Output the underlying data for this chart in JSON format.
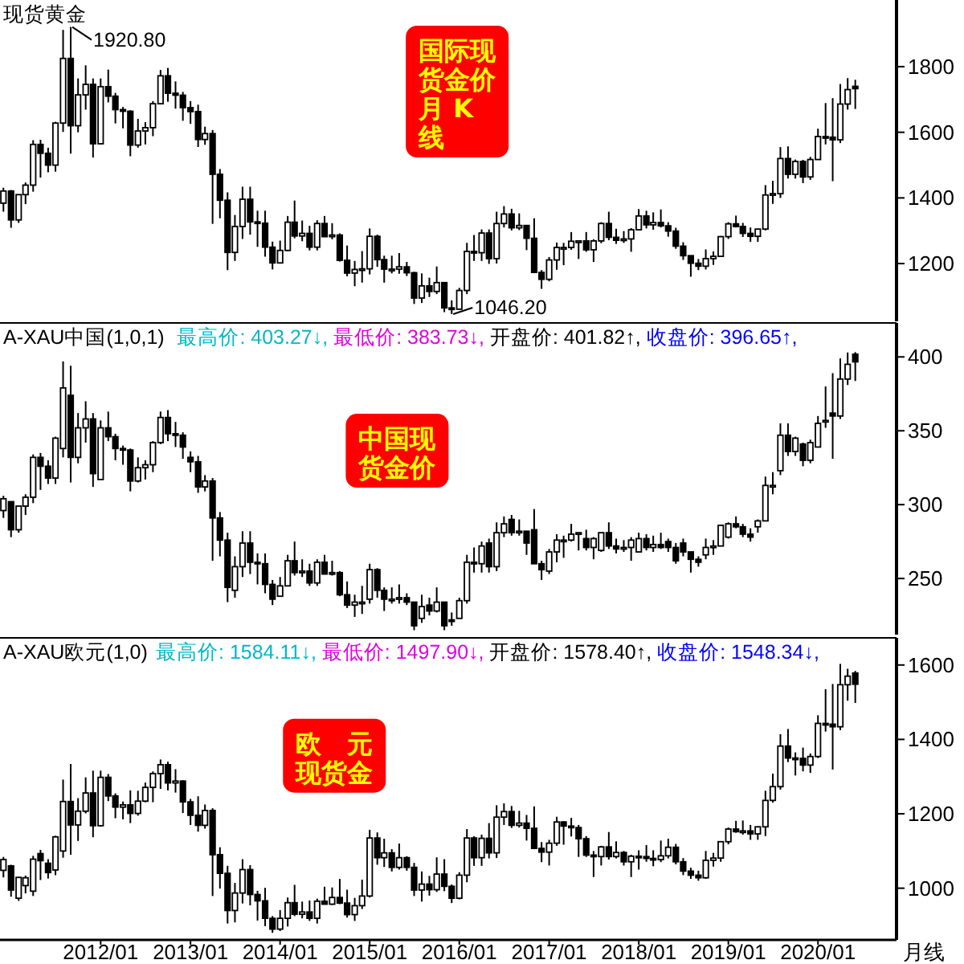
{
  "chart_data": [
    {
      "type": "candlestick",
      "title": "现货黄金",
      "annotations": [
        "国际现货金价月 K线",
        {
          "text": "1920.80",
          "x": "2011-09",
          "y": 1920.8
        },
        {
          "text": "1046.20",
          "x": "2015-12",
          "y": 1046.2
        }
      ],
      "x": [
        "2010-12",
        "2011-01",
        "2011-02",
        "2011-03",
        "2011-04",
        "2011-05",
        "2011-06",
        "2011-07",
        "2011-08",
        "2011-09",
        "2011-10",
        "2011-11",
        "2011-12",
        "2012-01",
        "2012-02",
        "2012-03",
        "2012-04",
        "2012-05",
        "2012-06",
        "2012-07",
        "2012-08",
        "2012-09",
        "2012-10",
        "2012-11",
        "2012-12",
        "2013-01",
        "2013-02",
        "2013-03",
        "2013-04",
        "2013-05",
        "2013-06",
        "2013-07",
        "2013-08",
        "2013-09",
        "2013-10",
        "2013-11",
        "2013-12",
        "2014-01",
        "2014-02",
        "2014-03",
        "2014-04",
        "2014-05",
        "2014-06",
        "2014-07",
        "2014-08",
        "2014-09",
        "2014-10",
        "2014-11",
        "2014-12",
        "2015-01",
        "2015-02",
        "2015-03",
        "2015-04",
        "2015-05",
        "2015-06",
        "2015-07",
        "2015-08",
        "2015-09",
        "2015-10",
        "2015-11",
        "2015-12",
        "2016-01",
        "2016-02",
        "2016-03",
        "2016-04",
        "2016-05",
        "2016-06",
        "2016-07",
        "2016-08",
        "2016-09",
        "2016-10",
        "2016-11",
        "2016-12",
        "2017-01",
        "2017-02",
        "2017-03",
        "2017-04",
        "2017-05",
        "2017-06",
        "2017-07",
        "2017-08",
        "2017-09",
        "2017-10",
        "2017-11",
        "2017-12",
        "2018-01",
        "2018-02",
        "2018-03",
        "2018-04",
        "2018-05",
        "2018-06",
        "2018-07",
        "2018-08",
        "2018-09",
        "2018-10",
        "2018-11",
        "2018-12",
        "2019-01",
        "2019-02",
        "2019-03",
        "2019-04",
        "2019-05",
        "2019-06",
        "2019-07",
        "2019-08",
        "2019-09",
        "2019-10",
        "2019-11",
        "2019-12",
        "2020-01",
        "2020-02",
        "2020-03",
        "2020-04",
        "2020-05",
        "2020-06"
      ],
      "ohlc": [
        [
          1384,
          1431,
          1358,
          1421
        ],
        [
          1421,
          1424,
          1309,
          1333
        ],
        [
          1333,
          1411,
          1324,
          1410
        ],
        [
          1410,
          1447,
          1381,
          1439
        ],
        [
          1439,
          1576,
          1419,
          1563
        ],
        [
          1563,
          1577,
          1462,
          1536
        ],
        [
          1536,
          1553,
          1478,
          1500
        ],
        [
          1500,
          1632,
          1480,
          1628
        ],
        [
          1628,
          1912,
          1601,
          1825
        ],
        [
          1825,
          1920.8,
          1535,
          1620
        ],
        [
          1620,
          1764,
          1600,
          1714
        ],
        [
          1714,
          1804,
          1669,
          1746
        ],
        [
          1746,
          1764,
          1523,
          1565
        ],
        [
          1565,
          1764,
          1563,
          1739
        ],
        [
          1739,
          1791,
          1691,
          1710
        ],
        [
          1710,
          1720,
          1627,
          1669
        ],
        [
          1669,
          1677,
          1612,
          1664
        ],
        [
          1664,
          1667,
          1527,
          1561
        ],
        [
          1561,
          1641,
          1553,
          1604
        ],
        [
          1604,
          1631,
          1563,
          1614
        ],
        [
          1614,
          1695,
          1588,
          1687
        ],
        [
          1687,
          1790,
          1685,
          1772
        ],
        [
          1772,
          1796,
          1693,
          1719
        ],
        [
          1719,
          1755,
          1672,
          1713
        ],
        [
          1713,
          1723,
          1635,
          1675
        ],
        [
          1675,
          1695,
          1626,
          1663
        ],
        [
          1663,
          1684,
          1555,
          1578
        ],
        [
          1578,
          1617,
          1562,
          1596
        ],
        [
          1596,
          1607,
          1321,
          1472
        ],
        [
          1472,
          1488,
          1338,
          1393
        ],
        [
          1393,
          1417,
          1180,
          1234
        ],
        [
          1234,
          1348,
          1208,
          1313
        ],
        [
          1313,
          1434,
          1275,
          1396
        ],
        [
          1396,
          1434,
          1288,
          1327
        ],
        [
          1327,
          1361,
          1251,
          1323
        ],
        [
          1323,
          1361,
          1221,
          1250
        ],
        [
          1250,
          1267,
          1182,
          1202
        ],
        [
          1202,
          1270,
          1200,
          1240
        ],
        [
          1240,
          1345,
          1238,
          1326
        ],
        [
          1326,
          1392,
          1277,
          1284
        ],
        [
          1284,
          1331,
          1268,
          1292
        ],
        [
          1292,
          1315,
          1240,
          1250
        ],
        [
          1250,
          1332,
          1240,
          1322
        ],
        [
          1322,
          1345,
          1281,
          1282
        ],
        [
          1282,
          1323,
          1274,
          1287
        ],
        [
          1287,
          1292,
          1206,
          1210
        ],
        [
          1210,
          1255,
          1161,
          1171
        ],
        [
          1171,
          1208,
          1131,
          1182
        ],
        [
          1182,
          1238,
          1142,
          1184
        ],
        [
          1184,
          1307,
          1167,
          1283
        ],
        [
          1283,
          1288,
          1190,
          1212
        ],
        [
          1212,
          1224,
          1142,
          1183
        ],
        [
          1183,
          1224,
          1170,
          1183
        ],
        [
          1183,
          1232,
          1169,
          1190
        ],
        [
          1190,
          1205,
          1162,
          1172
        ],
        [
          1172,
          1175,
          1077,
          1095
        ],
        [
          1095,
          1170,
          1080,
          1132
        ],
        [
          1132,
          1157,
          1098,
          1115
        ],
        [
          1115,
          1191,
          1107,
          1142
        ],
        [
          1142,
          1143,
          1052,
          1065
        ],
        [
          1065,
          1088,
          1046.2,
          1061
        ],
        [
          1061,
          1126,
          1061,
          1118
        ],
        [
          1118,
          1263,
          1107,
          1237
        ],
        [
          1237,
          1287,
          1208,
          1233
        ],
        [
          1233,
          1304,
          1208,
          1293
        ],
        [
          1293,
          1304,
          1199,
          1215
        ],
        [
          1215,
          1358,
          1200,
          1322
        ],
        [
          1322,
          1375,
          1310,
          1351
        ],
        [
          1351,
          1367,
          1301,
          1309
        ],
        [
          1309,
          1353,
          1302,
          1316
        ],
        [
          1316,
          1317,
          1241,
          1277
        ],
        [
          1277,
          1338,
          1171,
          1173
        ],
        [
          1173,
          1180,
          1123,
          1152
        ],
        [
          1152,
          1220,
          1146,
          1211
        ],
        [
          1211,
          1264,
          1181,
          1249
        ],
        [
          1249,
          1263,
          1195,
          1249
        ],
        [
          1249,
          1296,
          1242,
          1268
        ],
        [
          1268,
          1270,
          1214,
          1269
        ],
        [
          1269,
          1296,
          1236,
          1242
        ],
        [
          1242,
          1274,
          1205,
          1269
        ],
        [
          1269,
          1326,
          1262,
          1322
        ],
        [
          1322,
          1358,
          1271,
          1280
        ],
        [
          1280,
          1306,
          1260,
          1271
        ],
        [
          1271,
          1299,
          1263,
          1275
        ],
        [
          1275,
          1308,
          1236,
          1303
        ],
        [
          1303,
          1366,
          1302,
          1345
        ],
        [
          1345,
          1361,
          1307,
          1318
        ],
        [
          1318,
          1356,
          1303,
          1325
        ],
        [
          1325,
          1365,
          1310,
          1315
        ],
        [
          1315,
          1326,
          1282,
          1299
        ],
        [
          1299,
          1309,
          1245,
          1253
        ],
        [
          1253,
          1265,
          1211,
          1224
        ],
        [
          1224,
          1224,
          1160,
          1201
        ],
        [
          1201,
          1214,
          1180,
          1192
        ],
        [
          1192,
          1243,
          1182,
          1215
        ],
        [
          1215,
          1237,
          1196,
          1222
        ],
        [
          1222,
          1284,
          1221,
          1282
        ],
        [
          1282,
          1326,
          1275,
          1321
        ],
        [
          1321,
          1346,
          1310,
          1313
        ],
        [
          1313,
          1324,
          1281,
          1292
        ],
        [
          1292,
          1310,
          1266,
          1283
        ],
        [
          1283,
          1306,
          1266,
          1305
        ],
        [
          1305,
          1439,
          1301,
          1409
        ],
        [
          1409,
          1452,
          1382,
          1413
        ],
        [
          1413,
          1555,
          1400,
          1520
        ],
        [
          1520,
          1557,
          1459,
          1472
        ],
        [
          1472,
          1517,
          1459,
          1511
        ],
        [
          1511,
          1516,
          1445,
          1464
        ],
        [
          1464,
          1525,
          1455,
          1517
        ],
        [
          1517,
          1611,
          1517,
          1587
        ],
        [
          1587,
          1689,
          1563,
          1585
        ],
        [
          1585,
          1704,
          1451,
          1577
        ],
        [
          1577,
          1747,
          1567,
          1686
        ],
        [
          1686,
          1765,
          1669,
          1730
        ],
        [
          1740,
          1760,
          1671,
          1733
        ]
      ],
      "xlim": [
        "2010-11-17",
        "2020-11-16"
      ],
      "ylim": [
        1024,
        2003
      ],
      "yticks": [
        1200,
        1400,
        1600,
        1800
      ],
      "tick_labels": "y"
    },
    {
      "type": "candlestick",
      "title": "A-XAU中国(1,0,1)",
      "subtitle": "最高价: 403.27↓, 最低价: 383.73↓, 开盘价: 401.82↑, 收盘价: 396.65↑,",
      "annotations": [
        "中国现货金价"
      ],
      "x": [
        "2010-12",
        "2011-01",
        "2011-02",
        "2011-03",
        "2011-04",
        "2011-05",
        "2011-06",
        "2011-07",
        "2011-08",
        "2011-09",
        "2011-10",
        "2011-11",
        "2011-12",
        "2012-01",
        "2012-02",
        "2012-03",
        "2012-04",
        "2012-05",
        "2012-06",
        "2012-07",
        "2012-08",
        "2012-09",
        "2012-10",
        "2012-11",
        "2012-12",
        "2013-01",
        "2013-02",
        "2013-03",
        "2013-04",
        "2013-05",
        "2013-06",
        "2013-07",
        "2013-08",
        "2013-09",
        "2013-10",
        "2013-11",
        "2013-12",
        "2014-01",
        "2014-02",
        "2014-03",
        "2014-04",
        "2014-05",
        "2014-06",
        "2014-07",
        "2014-08",
        "2014-09",
        "2014-10",
        "2014-11",
        "2014-12",
        "2015-01",
        "2015-02",
        "2015-03",
        "2015-04",
        "2015-05",
        "2015-06",
        "2015-07",
        "2015-08",
        "2015-09",
        "2015-10",
        "2015-11",
        "2015-12",
        "2016-01",
        "2016-02",
        "2016-03",
        "2016-04",
        "2016-05",
        "2016-06",
        "2016-07",
        "2016-08",
        "2016-09",
        "2016-10",
        "2016-11",
        "2016-12",
        "2017-01",
        "2017-02",
        "2017-03",
        "2017-04",
        "2017-05",
        "2017-06",
        "2017-07",
        "2017-08",
        "2017-09",
        "2017-10",
        "2017-11",
        "2017-12",
        "2018-01",
        "2018-02",
        "2018-03",
        "2018-04",
        "2018-05",
        "2018-06",
        "2018-07",
        "2018-08",
        "2018-09",
        "2018-10",
        "2018-11",
        "2018-12",
        "2019-01",
        "2019-02",
        "2019-03",
        "2019-04",
        "2019-05",
        "2019-06",
        "2019-07",
        "2019-08",
        "2019-09",
        "2019-10",
        "2019-11",
        "2019-12",
        "2020-01",
        "2020-02",
        "2020-03",
        "2020-04",
        "2020-05",
        "2020-06"
      ],
      "ohlc": [
        [
          296,
          306,
          291,
          304
        ],
        [
          302,
          302,
          278,
          283
        ],
        [
          283,
          299,
          281,
          299
        ],
        [
          299,
          307,
          293,
          305
        ],
        [
          305,
          334,
          301,
          332
        ],
        [
          332,
          335,
          310,
          326
        ],
        [
          326,
          330,
          314,
          318
        ],
        [
          318,
          346,
          314,
          345
        ],
        [
          338,
          397,
          332,
          379
        ],
        [
          374,
          394,
          315,
          332
        ],
        [
          332,
          362,
          328,
          352
        ],
        [
          352,
          370,
          342,
          358
        ],
        [
          358,
          362,
          312,
          321
        ],
        [
          317,
          357,
          317,
          352
        ],
        [
          352,
          363,
          343,
          346
        ],
        [
          346,
          348,
          330,
          338
        ],
        [
          338,
          340,
          327,
          337
        ],
        [
          337,
          338,
          309,
          316
        ],
        [
          316,
          332,
          315,
          325
        ],
        [
          325,
          330,
          317,
          327
        ],
        [
          327,
          343,
          322,
          342
        ],
        [
          342,
          363,
          341,
          359
        ],
        [
          359,
          364,
          343,
          348
        ],
        [
          348,
          356,
          339,
          347
        ],
        [
          347,
          349,
          331,
          339
        ],
        [
          332,
          336,
          322,
          329
        ],
        [
          329,
          333,
          308,
          312
        ],
        [
          312,
          320,
          309,
          316
        ],
        [
          316,
          318,
          262,
          291
        ],
        [
          291,
          295,
          265,
          276
        ],
        [
          276,
          281,
          234,
          244
        ],
        [
          242,
          265,
          237,
          258
        ],
        [
          258,
          282,
          251,
          274
        ],
        [
          274,
          282,
          253,
          261
        ],
        [
          261,
          267,
          246,
          260
        ],
        [
          260,
          267,
          240,
          246
        ],
        [
          246,
          249,
          232,
          236
        ],
        [
          238,
          251,
          238,
          245
        ],
        [
          245,
          266,
          245,
          262
        ],
        [
          262,
          275,
          252,
          254
        ],
        [
          254,
          263,
          251,
          255
        ],
        [
          255,
          260,
          245,
          247
        ],
        [
          247,
          263,
          245,
          261
        ],
        [
          261,
          266,
          253,
          253
        ],
        [
          253,
          262,
          252,
          254
        ],
        [
          254,
          255,
          238,
          239
        ],
        [
          239,
          248,
          230,
          232
        ],
        [
          232,
          239,
          224,
          234
        ],
        [
          234,
          245,
          226,
          234
        ],
        [
          236,
          260,
          233,
          256
        ],
        [
          256,
          257,
          237,
          242
        ],
        [
          242,
          244,
          228,
          236
        ],
        [
          236,
          244,
          233,
          236
        ],
        [
          236,
          246,
          233,
          237
        ],
        [
          237,
          240,
          232,
          234
        ],
        [
          234,
          234,
          215,
          218
        ],
        [
          223,
          239,
          220,
          231
        ],
        [
          232,
          237,
          225,
          228
        ],
        [
          228,
          244,
          227,
          234
        ],
        [
          234,
          234,
          215,
          218
        ],
        [
          222,
          227,
          218,
          221
        ],
        [
          223,
          237,
          223,
          235
        ],
        [
          235,
          266,
          233,
          261
        ],
        [
          261,
          271,
          254,
          260
        ],
        [
          260,
          275,
          254,
          272
        ],
        [
          274,
          277,
          254,
          258
        ],
        [
          258,
          288,
          255,
          281
        ],
        [
          281,
          292,
          278,
          287
        ],
        [
          290,
          293,
          279,
          281
        ],
        [
          281,
          290,
          279,
          282
        ],
        [
          282,
          282,
          266,
          274
        ],
        [
          283,
          297,
          260,
          260
        ],
        [
          260,
          262,
          249,
          256
        ],
        [
          255,
          270,
          253,
          268
        ],
        [
          268,
          280,
          261,
          276
        ],
        [
          276,
          279,
          264,
          276
        ],
        [
          276,
          287,
          275,
          280
        ],
        [
          280,
          281,
          269,
          281
        ],
        [
          277,
          283,
          269,
          271
        ],
        [
          271,
          278,
          263,
          277
        ],
        [
          269,
          281,
          268,
          281
        ],
        [
          281,
          288,
          270,
          272
        ],
        [
          272,
          277,
          267,
          270
        ],
        [
          270,
          276,
          268,
          271
        ],
        [
          271,
          278,
          262,
          276
        ],
        [
          268,
          281,
          268,
          277
        ],
        [
          277,
          280,
          269,
          271
        ],
        [
          271,
          279,
          268,
          273
        ],
        [
          273,
          281,
          270,
          271
        ],
        [
          275,
          277,
          268,
          271
        ],
        [
          271,
          274,
          260,
          262
        ],
        [
          274,
          277,
          265,
          268
        ],
        [
          268,
          268,
          254,
          263
        ],
        [
          263,
          265,
          258,
          261
        ],
        [
          266,
          277,
          263,
          271
        ],
        [
          271,
          276,
          266,
          272
        ],
        [
          272,
          286,
          272,
          286
        ],
        [
          278,
          288,
          277,
          287
        ],
        [
          287,
          292,
          284,
          285
        ],
        [
          285,
          287,
          278,
          280
        ],
        [
          280,
          284,
          275,
          278
        ],
        [
          285,
          290,
          281,
          289
        ],
        [
          289,
          319,
          289,
          313
        ],
        [
          313,
          322,
          307,
          313
        ],
        [
          323,
          355,
          320,
          347
        ],
        [
          347,
          355,
          333,
          336
        ],
        [
          336,
          346,
          333,
          345
        ],
        [
          341,
          342,
          326,
          330
        ],
        [
          330,
          344,
          328,
          342
        ],
        [
          339,
          360,
          339,
          355
        ],
        [
          357,
          380,
          352,
          357
        ],
        [
          362,
          389,
          331,
          360
        ],
        [
          360,
          399,
          358,
          385
        ],
        [
          385,
          403,
          381,
          395
        ],
        [
          401.82,
          403.27,
          383.73,
          396.65
        ]
      ],
      "xlim": [
        "2010-11-17",
        "2020-11-16"
      ],
      "ylim": [
        212,
        423
      ],
      "yticks": [
        250,
        300,
        350,
        400
      ],
      "tick_labels": "y"
    },
    {
      "type": "candlestick",
      "title": "A-XAU欧元(1,0)",
      "subtitle": "最高价: 1584.11↓, 最低价: 1497.90↓, 开盘价: 1578.40↑, 收盘价: 1548.34↓,",
      "annotations": [
        "欧　元现货金"
      ],
      "xlabel": "月线",
      "x": [
        "2010-12",
        "2011-01",
        "2011-02",
        "2011-03",
        "2011-04",
        "2011-05",
        "2011-06",
        "2011-07",
        "2011-08",
        "2011-09",
        "2011-10",
        "2011-11",
        "2011-12",
        "2012-01",
        "2012-02",
        "2012-03",
        "2012-04",
        "2012-05",
        "2012-06",
        "2012-07",
        "2012-08",
        "2012-09",
        "2012-10",
        "2012-11",
        "2012-12",
        "2013-01",
        "2013-02",
        "2013-03",
        "2013-04",
        "2013-05",
        "2013-06",
        "2013-07",
        "2013-08",
        "2013-09",
        "2013-10",
        "2013-11",
        "2013-12",
        "2014-01",
        "2014-02",
        "2014-03",
        "2014-04",
        "2014-05",
        "2014-06",
        "2014-07",
        "2014-08",
        "2014-09",
        "2014-10",
        "2014-11",
        "2014-12",
        "2015-01",
        "2015-02",
        "2015-03",
        "2015-04",
        "2015-05",
        "2015-06",
        "2015-07",
        "2015-08",
        "2015-09",
        "2015-10",
        "2015-11",
        "2015-12",
        "2016-01",
        "2016-02",
        "2016-03",
        "2016-04",
        "2016-05",
        "2016-06",
        "2016-07",
        "2016-08",
        "2016-09",
        "2016-10",
        "2016-11",
        "2016-12",
        "2017-01",
        "2017-02",
        "2017-03",
        "2017-04",
        "2017-05",
        "2017-06",
        "2017-07",
        "2017-08",
        "2017-09",
        "2017-10",
        "2017-11",
        "2017-12",
        "2018-01",
        "2018-02",
        "2018-03",
        "2018-04",
        "2018-05",
        "2018-06",
        "2018-07",
        "2018-08",
        "2018-09",
        "2018-10",
        "2018-11",
        "2018-12",
        "2019-01",
        "2019-02",
        "2019-03",
        "2019-04",
        "2019-05",
        "2019-06",
        "2019-07",
        "2019-08",
        "2019-09",
        "2019-10",
        "2019-11",
        "2019-12",
        "2020-01",
        "2020-02",
        "2020-03",
        "2020-04",
        "2020-05",
        "2020-06"
      ],
      "ohlc": [
        [
          1048,
          1084,
          1029,
          1077
        ],
        [
          1060,
          1063,
          977,
          995
        ],
        [
          973,
          1030,
          966,
          1029
        ],
        [
          1007,
          1034,
          986,
          1028
        ],
        [
          992,
          1087,
          979,
          1078
        ],
        [
          1093,
          1103,
          1022,
          1074
        ],
        [
          1067,
          1078,
          1026,
          1042
        ],
        [
          1049,
          1141,
          1035,
          1138
        ],
        [
          1100,
          1292,
          1082,
          1233
        ],
        [
          1233,
          1334,
          1090,
          1170
        ],
        [
          1170,
          1242,
          1127,
          1207
        ],
        [
          1207,
          1298,
          1201,
          1256
        ],
        [
          1256,
          1316,
          1137,
          1168
        ],
        [
          1168,
          1316,
          1166,
          1298
        ],
        [
          1298,
          1307,
          1234,
          1248
        ],
        [
          1248,
          1255,
          1188,
          1218
        ],
        [
          1218,
          1233,
          1185,
          1224
        ],
        [
          1224,
          1263,
          1175,
          1201
        ],
        [
          1201,
          1262,
          1195,
          1234
        ],
        [
          1234,
          1284,
          1231,
          1271
        ],
        [
          1271,
          1314,
          1231,
          1308
        ],
        [
          1308,
          1346,
          1267,
          1332
        ],
        [
          1332,
          1340,
          1263,
          1283
        ],
        [
          1283,
          1320,
          1257,
          1288
        ],
        [
          1288,
          1290,
          1202,
          1232
        ],
        [
          1232,
          1240,
          1170,
          1196
        ],
        [
          1196,
          1247,
          1152,
          1169
        ],
        [
          1169,
          1225,
          1160,
          1209
        ],
        [
          1209,
          1215,
          979,
          1090
        ],
        [
          1090,
          1110,
          999,
          1040
        ],
        [
          1040,
          1060,
          905,
          940
        ],
        [
          940,
          1014,
          908,
          987
        ],
        [
          987,
          1078,
          959,
          1050
        ],
        [
          1050,
          1062,
          954,
          983
        ],
        [
          983,
          993,
          913,
          966
        ],
        [
          966,
          1001,
          898,
          919
        ],
        [
          919,
          925,
          880,
          890
        ],
        [
          890,
          941,
          885,
          919
        ],
        [
          919,
          975,
          897,
          961
        ],
        [
          961,
          1009,
          925,
          930
        ],
        [
          930,
          964,
          919,
          936
        ],
        [
          936,
          967,
          912,
          919
        ],
        [
          919,
          972,
          905,
          965
        ],
        [
          965,
          1004,
          956,
          957
        ],
        [
          957,
          1002,
          955,
          975
        ],
        [
          975,
          1025,
          957,
          960
        ],
        [
          960,
          996,
          921,
          929
        ],
        [
          929,
          974,
          912,
          953
        ],
        [
          953,
          1023,
          944,
          979
        ],
        [
          979,
          1157,
          975,
          1135
        ],
        [
          1135,
          1150,
          1063,
          1082
        ],
        [
          1082,
          1133,
          1057,
          1095
        ],
        [
          1095,
          1105,
          1045,
          1056
        ],
        [
          1056,
          1120,
          1050,
          1082
        ],
        [
          1082,
          1086,
          1047,
          1056
        ],
        [
          1056,
          1068,
          979,
          995
        ],
        [
          995,
          1045,
          964,
          1011
        ],
        [
          1011,
          1033,
          980,
          996
        ],
        [
          996,
          1083,
          990,
          1038
        ],
        [
          1038,
          1078,
          992,
          1005
        ],
        [
          1005,
          1010,
          960,
          973
        ],
        [
          973,
          1043,
          970,
          1035
        ],
        [
          1035,
          1159,
          1016,
          1135
        ],
        [
          1135,
          1140,
          1060,
          1082
        ],
        [
          1082,
          1144,
          1060,
          1134
        ],
        [
          1134,
          1175,
          1080,
          1095
        ],
        [
          1095,
          1223,
          1081,
          1191
        ],
        [
          1191,
          1228,
          1170,
          1206
        ],
        [
          1206,
          1221,
          1162,
          1169
        ],
        [
          1169,
          1208,
          1163,
          1175
        ],
        [
          1175,
          1197,
          1128,
          1161
        ],
        [
          1161,
          1220,
          1105,
          1107
        ],
        [
          1107,
          1124,
          1070,
          1097
        ],
        [
          1097,
          1130,
          1061,
          1121
        ],
        [
          1121,
          1192,
          1114,
          1178
        ],
        [
          1178,
          1180,
          1117,
          1167
        ],
        [
          1167,
          1189,
          1139,
          1163
        ],
        [
          1163,
          1170,
          1084,
          1133
        ],
        [
          1133,
          1140,
          1084,
          1089
        ],
        [
          1089,
          1100,
          1030,
          1085
        ],
        [
          1085,
          1114,
          1061,
          1111
        ],
        [
          1111,
          1151,
          1077,
          1085
        ],
        [
          1085,
          1126,
          1080,
          1096
        ],
        [
          1096,
          1100,
          1061,
          1071
        ],
        [
          1071,
          1090,
          1030,
          1086
        ],
        [
          1086,
          1102,
          1050,
          1085
        ],
        [
          1085,
          1116,
          1071,
          1080
        ],
        [
          1080,
          1102,
          1059,
          1077
        ],
        [
          1077,
          1128,
          1070,
          1087
        ],
        [
          1087,
          1133,
          1080,
          1110
        ],
        [
          1110,
          1119,
          1064,
          1071
        ],
        [
          1071,
          1081,
          1035,
          1046
        ],
        [
          1046,
          1055,
          1025,
          1035
        ],
        [
          1035,
          1047,
          1020,
          1028
        ],
        [
          1028,
          1100,
          1025,
          1075
        ],
        [
          1075,
          1095,
          1058,
          1081
        ],
        [
          1081,
          1126,
          1071,
          1125
        ],
        [
          1125,
          1163,
          1118,
          1159
        ],
        [
          1159,
          1181,
          1149,
          1152
        ],
        [
          1152,
          1182,
          1144,
          1154
        ],
        [
          1154,
          1170,
          1130,
          1146
        ],
        [
          1146,
          1166,
          1130,
          1165
        ],
        [
          1165,
          1262,
          1140,
          1236
        ],
        [
          1236,
          1308,
          1230,
          1273
        ],
        [
          1273,
          1414,
          1265,
          1382
        ],
        [
          1382,
          1428,
          1339,
          1350
        ],
        [
          1350,
          1365,
          1303,
          1349
        ],
        [
          1349,
          1378,
          1314,
          1331
        ],
        [
          1331,
          1362,
          1310,
          1354
        ],
        [
          1354,
          1465,
          1350,
          1443
        ],
        [
          1443,
          1535,
          1421,
          1441
        ],
        [
          1441,
          1549,
          1319,
          1434
        ],
        [
          1434,
          1603,
          1425,
          1547
        ],
        [
          1547,
          1590,
          1504,
          1570
        ],
        [
          1578.4,
          1584.11,
          1497.9,
          1548.34
        ]
      ],
      "xlim": [
        "2010-11-17",
        "2020-11-16"
      ],
      "ylim": [
        861,
        1673
      ],
      "yticks": [
        1000,
        1200,
        1400,
        1600
      ],
      "xticks": [
        {
          "value": "2012-01",
          "label": "2012/01"
        },
        {
          "value": "2013-01",
          "label": "2013/01"
        },
        {
          "value": "2014-01",
          "label": "2014/01"
        },
        {
          "value": "2015-01",
          "label": "2015/01"
        },
        {
          "value": "2016-01",
          "label": "2016/01"
        },
        {
          "value": "2017-01",
          "label": "2017/01"
        },
        {
          "value": "2018-01",
          "label": "2018/01"
        },
        {
          "value": "2019-01",
          "label": "2019/01"
        },
        {
          "value": "2020-01",
          "label": "2020/01"
        }
      ]
    }
  ]
}
